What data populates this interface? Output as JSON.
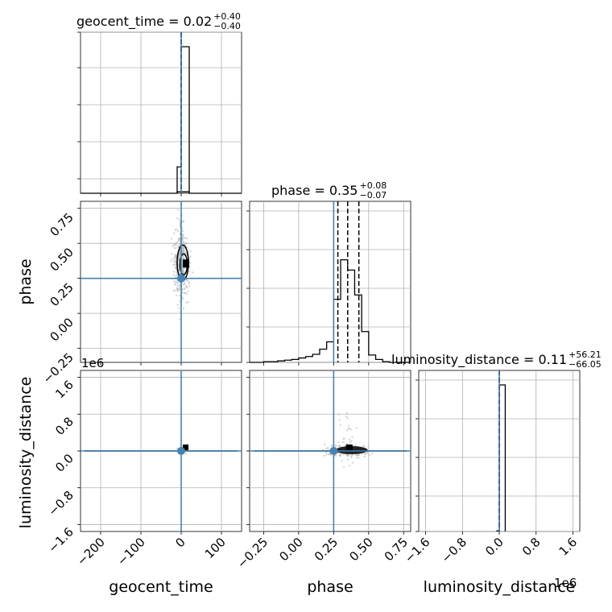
{
  "chart_data": {
    "type": "corner",
    "parameters": [
      "geocent_time",
      "phase",
      "luminosity_distance"
    ],
    "axis_labels": {
      "x": [
        "geocent_time",
        "phase",
        "luminosity_distance"
      ],
      "y": [
        "phase",
        "luminosity_distance"
      ]
    },
    "titles": [
      {
        "param": "geocent_time",
        "text": "geocent_time = 0.02",
        "plus": "+0.40",
        "minus": "−0.40"
      },
      {
        "param": "phase",
        "text": "phase = 0.35",
        "plus": "+0.08",
        "minus": "−0.07"
      },
      {
        "param": "luminosity_distance",
        "text": "luminosity_distance = 0.11",
        "plus": "+56.21",
        "minus": "−66.05"
      }
    ],
    "ranges": {
      "geocent_time": [
        -250,
        150
      ],
      "phase": [
        -0.35,
        0.8
      ],
      "luminosity_distance": [
        -1750000,
        1750000
      ]
    },
    "ticks": {
      "geocent_time": [
        -200,
        -100,
        0,
        100
      ],
      "phase_x": [
        -0.25,
        0.0,
        0.25,
        0.5,
        0.75
      ],
      "phase_y": [
        -0.25,
        0.0,
        0.25,
        0.5,
        0.75
      ],
      "luminosity_distance": [
        -1600000,
        -800000,
        0,
        800000,
        1600000
      ]
    },
    "tick_labels": {
      "geocent_time": [
        "−200",
        "−100",
        "0",
        "100"
      ],
      "phase": [
        "−0.25",
        "0.00",
        "0.25",
        "0.50",
        "0.75"
      ],
      "luminosity_distance": [
        "−1.6",
        "−0.8",
        "0.0",
        "0.8",
        "1.6"
      ]
    },
    "offset_text": {
      "luminosity_distance_y": "1e6",
      "luminosity_distance_x": "1e6"
    },
    "truths": {
      "geocent_time": 0.0,
      "phase": 0.25,
      "luminosity_distance": 0.0
    },
    "quantiles": {
      "geocent_time": [
        -0.38,
        0.02,
        0.42
      ],
      "phase": [
        0.28,
        0.35,
        0.43
      ],
      "luminosity_distance": [
        -66.0,
        0.11,
        56.3
      ]
    },
    "histograms": {
      "geocent_time": {
        "edges": [
          -10,
          0,
          20
        ],
        "counts": [
          0.18,
          1.0
        ],
        "tail_edges": [
          -250,
          -10,
          20,
          150
        ],
        "tail_counts": [
          0.0,
          0.01,
          0.0
        ]
      },
      "phase": {
        "edges": [
          -0.35,
          -0.3,
          -0.25,
          -0.2,
          -0.15,
          -0.1,
          -0.05,
          0.0,
          0.05,
          0.1,
          0.15,
          0.2,
          0.25,
          0.3,
          0.35,
          0.4,
          0.45,
          0.5,
          0.55,
          0.6,
          0.65,
          0.7,
          0.75,
          0.8
        ],
        "counts": [
          0.0,
          0.0,
          0.005,
          0.005,
          0.01,
          0.015,
          0.02,
          0.03,
          0.04,
          0.055,
          0.09,
          0.14,
          0.43,
          0.7,
          0.63,
          0.46,
          0.21,
          0.05,
          0.02,
          0.005,
          0.0,
          0.0,
          0.0
        ]
      },
      "luminosity_distance": {
        "edges": [
          -50000,
          0,
          130000
        ],
        "counts": [
          0.005,
          1.0
        ]
      }
    },
    "grid": true,
    "colors": {
      "truth": "#4682b4",
      "contour": "#000000",
      "points": "#b4b4b4"
    }
  }
}
